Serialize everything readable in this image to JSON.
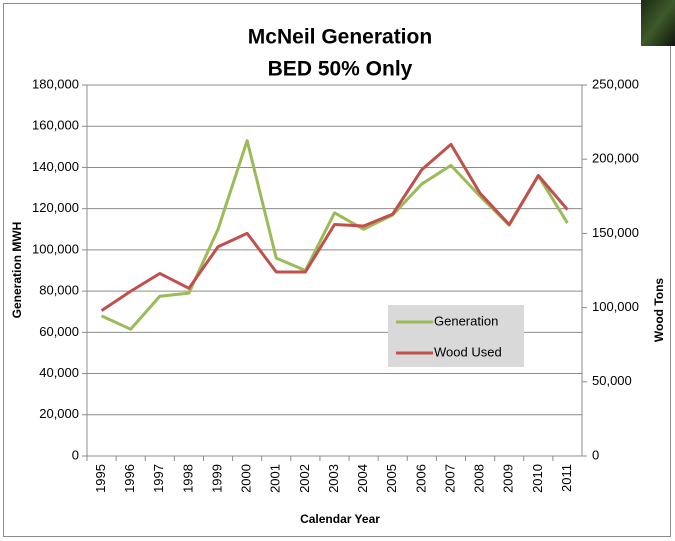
{
  "chart_data": {
    "type": "line",
    "title": [
      "McNeil Generation",
      "BED 50% Only"
    ],
    "x_label": "Calendar Year",
    "y_label": "Generation MWH",
    "y2_label": "Wood Tons",
    "categories": [
      "1995",
      "1996",
      "1997",
      "1998",
      "1999",
      "2000",
      "2001",
      "2002",
      "2003",
      "2004",
      "2005",
      "2006",
      "2007",
      "2008",
      "2009",
      "2010",
      "2011"
    ],
    "series": [
      {
        "name": "Generation",
        "color": "#9bbb59",
        "values": [
          68000,
          61500,
          77500,
          79000,
          110000,
          153000,
          96000,
          90000,
          118000,
          110000,
          117000,
          132000,
          141000,
          126000,
          112000,
          136000,
          113000
        ]
      },
      {
        "name": "Wood Used",
        "color": "#c0504d",
        "axis": "y2",
        "values": [
          98000,
          111000,
          123000,
          113000,
          141000,
          150000,
          124000,
          124000,
          156000,
          155000,
          163000,
          193000,
          210000,
          177000,
          156000,
          189000,
          166000
        ]
      }
    ],
    "ylim": [
      0,
      180000
    ],
    "yticks": [
      0,
      {
        "value": 20000,
        "label": "20,000"
      },
      {
        "value": 40000,
        "label": "40,000"
      },
      {
        "value": 60000,
        "label": "60,000"
      },
      {
        "value": 80000,
        "label": "80,000"
      },
      {
        "value": 100000,
        "label": "100,000"
      },
      {
        "value": 120000,
        "label": "120,000"
      },
      {
        "value": 140000,
        "label": "140,000"
      },
      {
        "value": 160000,
        "label": "160,000"
      },
      {
        "value": 180000,
        "label": "180,000"
      }
    ],
    "y2lim": [
      0,
      250000
    ],
    "y2ticks": [
      0,
      {
        "value": 50000,
        "label": "50,000"
      },
      {
        "value": 100000,
        "label": "100,000"
      },
      {
        "value": 150000,
        "label": "150,000"
      },
      {
        "value": 200000,
        "label": "200,000"
      },
      {
        "value": 250000,
        "label": "250,000"
      }
    ],
    "grid": true
  }
}
